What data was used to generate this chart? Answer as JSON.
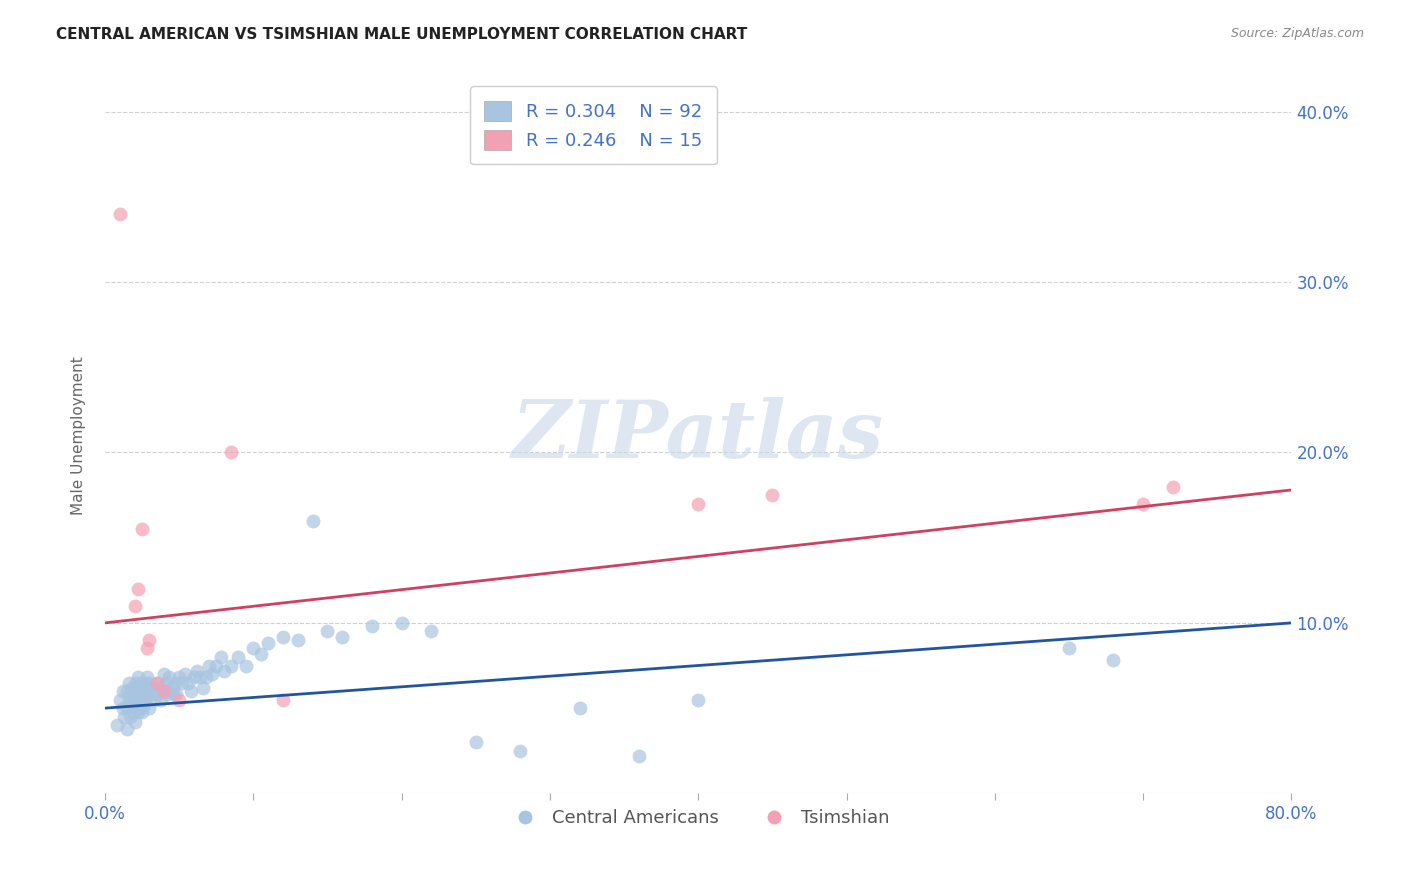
{
  "title": "CENTRAL AMERICAN VS TSIMSHIAN MALE UNEMPLOYMENT CORRELATION CHART",
  "source": "Source: ZipAtlas.com",
  "ylabel": "Male Unemployment",
  "xlim": [
    0.0,
    0.8
  ],
  "ylim": [
    0.0,
    0.42
  ],
  "yticks": [
    0.0,
    0.1,
    0.2,
    0.3,
    0.4
  ],
  "xticks": [
    0.0,
    0.1,
    0.2,
    0.3,
    0.4,
    0.5,
    0.6,
    0.7,
    0.8
  ],
  "blue_color": "#a8c4e0",
  "pink_color": "#f4a0b4",
  "blue_line_color": "#2255a0",
  "pink_line_color": "#d04060",
  "legend_blue_r": "0.304",
  "legend_blue_n": "92",
  "legend_pink_r": "0.246",
  "legend_pink_n": "15",
  "axis_color": "#4472c4",
  "watermark_text": "ZIPatlas",
  "blue_scatter_x": [
    0.008,
    0.01,
    0.012,
    0.012,
    0.013,
    0.015,
    0.015,
    0.015,
    0.016,
    0.016,
    0.017,
    0.017,
    0.018,
    0.018,
    0.019,
    0.019,
    0.02,
    0.02,
    0.02,
    0.021,
    0.021,
    0.022,
    0.022,
    0.022,
    0.023,
    0.023,
    0.024,
    0.024,
    0.025,
    0.025,
    0.026,
    0.026,
    0.027,
    0.027,
    0.028,
    0.028,
    0.029,
    0.03,
    0.03,
    0.031,
    0.032,
    0.033,
    0.034,
    0.035,
    0.036,
    0.037,
    0.038,
    0.04,
    0.04,
    0.041,
    0.042,
    0.043,
    0.045,
    0.046,
    0.047,
    0.048,
    0.05,
    0.052,
    0.054,
    0.056,
    0.058,
    0.06,
    0.062,
    0.064,
    0.066,
    0.068,
    0.07,
    0.072,
    0.075,
    0.078,
    0.08,
    0.085,
    0.09,
    0.095,
    0.1,
    0.105,
    0.11,
    0.12,
    0.13,
    0.14,
    0.15,
    0.16,
    0.18,
    0.2,
    0.22,
    0.25,
    0.28,
    0.32,
    0.36,
    0.4,
    0.65,
    0.68
  ],
  "blue_scatter_y": [
    0.04,
    0.055,
    0.05,
    0.06,
    0.045,
    0.038,
    0.05,
    0.06,
    0.055,
    0.065,
    0.045,
    0.058,
    0.052,
    0.062,
    0.048,
    0.058,
    0.042,
    0.052,
    0.062,
    0.055,
    0.065,
    0.048,
    0.058,
    0.068,
    0.05,
    0.062,
    0.055,
    0.065,
    0.048,
    0.06,
    0.052,
    0.062,
    0.055,
    0.065,
    0.058,
    0.068,
    0.06,
    0.05,
    0.065,
    0.058,
    0.062,
    0.055,
    0.06,
    0.065,
    0.058,
    0.062,
    0.055,
    0.06,
    0.07,
    0.065,
    0.058,
    0.068,
    0.062,
    0.058,
    0.065,
    0.058,
    0.068,
    0.065,
    0.07,
    0.065,
    0.06,
    0.068,
    0.072,
    0.068,
    0.062,
    0.068,
    0.075,
    0.07,
    0.075,
    0.08,
    0.072,
    0.075,
    0.08,
    0.075,
    0.085,
    0.082,
    0.088,
    0.092,
    0.09,
    0.16,
    0.095,
    0.092,
    0.098,
    0.1,
    0.095,
    0.03,
    0.025,
    0.05,
    0.022,
    0.055,
    0.085,
    0.078
  ],
  "pink_scatter_x": [
    0.01,
    0.02,
    0.022,
    0.025,
    0.028,
    0.03,
    0.035,
    0.04,
    0.05,
    0.085,
    0.12,
    0.4,
    0.45,
    0.7,
    0.72
  ],
  "pink_scatter_y": [
    0.34,
    0.11,
    0.12,
    0.155,
    0.085,
    0.09,
    0.065,
    0.06,
    0.055,
    0.2,
    0.055,
    0.17,
    0.175,
    0.17,
    0.18
  ],
  "blue_trendline_x": [
    0.0,
    0.8
  ],
  "blue_trendline_y": [
    0.05,
    0.1
  ],
  "pink_trendline_x": [
    0.0,
    0.8
  ],
  "pink_trendline_y": [
    0.1,
    0.178
  ],
  "grid_color": "#d0d0d0",
  "grid_linestyle": "--",
  "background_color": "#ffffff"
}
